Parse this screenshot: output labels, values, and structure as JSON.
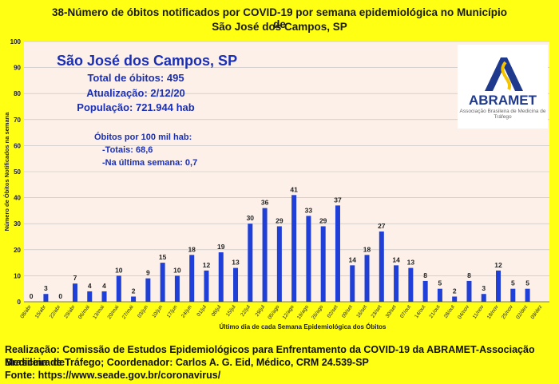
{
  "title_line1": "38-Número de óbitos notificados por COVID-19 por semana epidemiológica no Município de",
  "title_line2": "São José dos Campos, SP",
  "info": {
    "city": "São José dos Campos, SP",
    "total": "Total de óbitos: 495",
    "update": "Atualização: 2/12/20",
    "population": "População: 721.944 hab",
    "per100k": "Óbitos por 100 mil hab:",
    "totals": "-Totais: 68,6",
    "last_week": "-Na última semana: 0,7"
  },
  "logo": {
    "name": "ABRAMET",
    "subtitle": "Associação Brasileira de Medicina de Tráfego"
  },
  "footer": {
    "line1": "Realização: Comissão de Estudos Epidemiológicos para Enfrentamento da COVID-19 da ABRAMET-Associação Brasileira de",
    "line2": "Medicina de Tráfego; Coordenador: Carlos A. G. Eid, Médico, CRM 24.539-SP",
    "line3": "Fonte: https://www.seade.gov.br/coronavirus/"
  },
  "colors": {
    "bar": "#1f3fd6",
    "plot_bg": "#fdf0e8",
    "page_bg": "#ffff14",
    "info_text": "#1a2fb4"
  },
  "chart_data": {
    "type": "bar",
    "xlabel": "Último dia de cada Semana Epidemiológica dos Óbitos",
    "ylabel": "Número de Óbitos Notificados na semana",
    "ylim": [
      0,
      100
    ],
    "yticks": [
      0,
      10,
      20,
      30,
      40,
      50,
      60,
      70,
      80,
      90,
      100
    ],
    "grid": true,
    "categories": [
      "08/abr",
      "15/abr",
      "22/abr",
      "29/abr",
      "06/mai",
      "13/mai",
      "20/mai",
      "27/mai",
      "03/jun",
      "10/jun",
      "17/jun",
      "24/jun",
      "01/jul",
      "08/jul",
      "15/jul",
      "22/jul",
      "29/jul",
      "05/ago",
      "12/ago",
      "19/ago",
      "26/ago",
      "02/set",
      "09/set",
      "16/set",
      "23/set",
      "30/set",
      "07/out",
      "14/out",
      "21/out",
      "28/out",
      "04/nov",
      "11/nov",
      "18/nov",
      "25/nov",
      "02/dez",
      "09/dez"
    ],
    "values": [
      0,
      3,
      0,
      7,
      4,
      4,
      10,
      2,
      9,
      15,
      10,
      18,
      12,
      19,
      13,
      30,
      36,
      29,
      41,
      33,
      29,
      37,
      14,
      18,
      27,
      14,
      13,
      8,
      5,
      2,
      8,
      3,
      12,
      5,
      5,
      null
    ]
  }
}
